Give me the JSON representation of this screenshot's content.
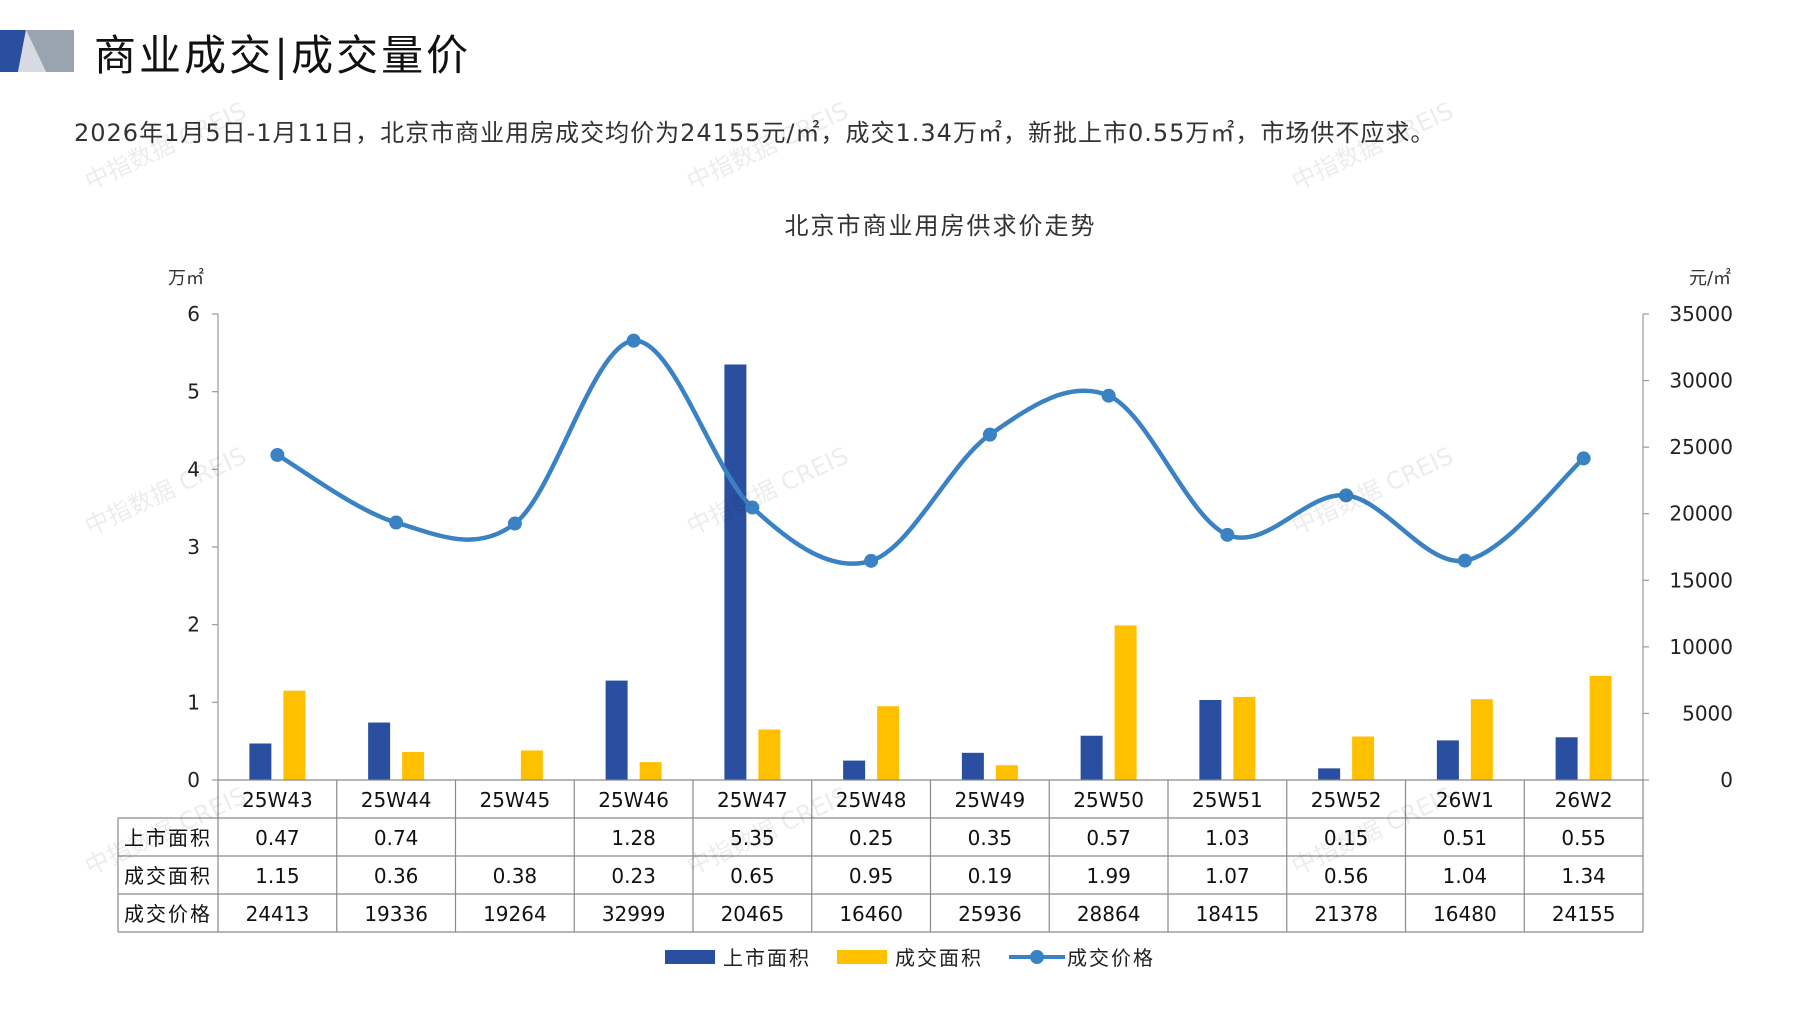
{
  "header": {
    "title": "商业成交|成交量价",
    "summary": "2026年1月5日-1月11日，北京市商业用房成交均价为24155元/㎡，成交1.34万㎡，新批上市0.55万㎡，市场供不应求。"
  },
  "watermark": "中指数据 CREIS",
  "colors": {
    "supply": "#2B4FA0",
    "deal_area": "#FFC000",
    "price": "#3A82C4",
    "logo_dark": "#2B4FA0",
    "logo_grey": "#9AA3B0"
  },
  "chart_data": {
    "type": "bar",
    "title": "北京市商业用房供求价走势",
    "left_axis_unit": "万㎡",
    "right_axis_unit": "元/㎡",
    "categories": [
      "25W43",
      "25W44",
      "25W45",
      "25W46",
      "25W47",
      "25W48",
      "25W49",
      "25W50",
      "25W51",
      "25W52",
      "26W1",
      "26W2"
    ],
    "ylim_left": [
      0,
      6
    ],
    "yticks_left": [
      0,
      1,
      2,
      3,
      4,
      5,
      6
    ],
    "ylim_right": [
      0,
      35000
    ],
    "yticks_right": [
      0,
      5000,
      10000,
      15000,
      20000,
      25000,
      30000,
      35000
    ],
    "series": [
      {
        "name": "上市面积",
        "type": "bar",
        "axis": "left",
        "values": [
          0.47,
          0.74,
          null,
          1.28,
          5.35,
          0.25,
          0.35,
          0.57,
          1.03,
          0.15,
          0.51,
          0.55
        ],
        "labels": [
          "0.47",
          "0.74",
          "",
          "1.28",
          "5.35",
          "0.25",
          "0.35",
          "0.57",
          "1.03",
          "0.15",
          "0.51",
          "0.55"
        ]
      },
      {
        "name": "成交面积",
        "type": "bar",
        "axis": "left",
        "values": [
          1.15,
          0.36,
          0.38,
          0.23,
          0.65,
          0.95,
          0.19,
          1.99,
          1.07,
          0.56,
          1.04,
          1.34
        ],
        "labels": [
          "1.15",
          "0.36",
          "0.38",
          "0.23",
          "0.65",
          "0.95",
          "0.19",
          "1.99",
          "1.07",
          "0.56",
          "1.04",
          "1.34"
        ]
      },
      {
        "name": "成交价格",
        "type": "line",
        "axis": "right",
        "values": [
          24413,
          19336,
          19264,
          32999,
          20465,
          16460,
          25936,
          28864,
          18415,
          21378,
          16480,
          24155
        ],
        "labels": [
          "24413",
          "19336",
          "19264",
          "32999",
          "20465",
          "16460",
          "25936",
          "28864",
          "18415",
          "21378",
          "16480",
          "24155"
        ]
      }
    ],
    "legend_position": "bottom-center",
    "grid": false
  }
}
